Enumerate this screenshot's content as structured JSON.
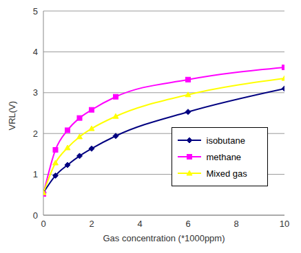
{
  "chart_data": {
    "type": "line",
    "x_label": "Gas concentration (*1000ppm)",
    "y_label": "VRL(V)",
    "x": [
      0,
      0.5,
      1,
      1.5,
      2,
      3,
      6,
      10
    ],
    "series": [
      {
        "name": "isobutane",
        "color": "#000080",
        "marker": "diamond",
        "values": [
          0.55,
          0.97,
          1.23,
          1.45,
          1.63,
          1.94,
          2.53,
          3.1
        ]
      },
      {
        "name": "methane",
        "color": "#FF00FF",
        "marker": "square",
        "values": [
          0.52,
          1.6,
          2.08,
          2.38,
          2.58,
          2.9,
          3.32,
          3.62
        ]
      },
      {
        "name": "Mixed gas",
        "color": "#FFFF00",
        "marker": "triangle",
        "values": [
          0.55,
          1.28,
          1.65,
          1.92,
          2.12,
          2.42,
          2.95,
          3.35
        ]
      }
    ],
    "xlim": [
      0,
      10
    ],
    "xticks": [
      0,
      2,
      4,
      6,
      8,
      10
    ],
    "ylim": [
      0,
      5
    ],
    "yticks": [
      0,
      1,
      2,
      3,
      4,
      5
    ],
    "grid": true,
    "legend": "right"
  }
}
